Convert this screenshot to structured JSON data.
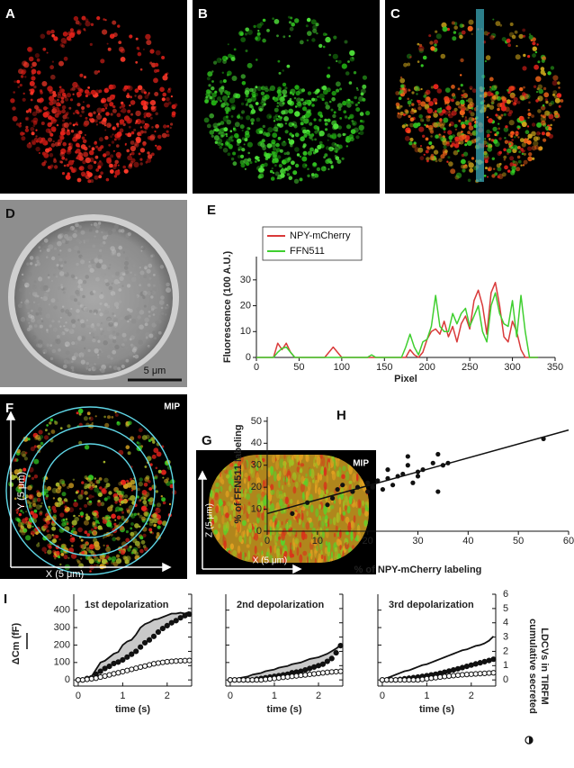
{
  "panel_labels": [
    "A",
    "B",
    "C",
    "D",
    "E",
    "F",
    "G",
    "H",
    "I"
  ],
  "image_text": {
    "d_scale_bar": "5 μm",
    "f_mip": "MIP",
    "f_y_axis": "Y (5 μm)",
    "f_x_axis": "X (5 μm)",
    "g_mip": "MIP",
    "g_z_axis": "Z (5 μm)",
    "g_x_axis": "X (5 μm)"
  },
  "chart_data": [
    {
      "type": "line",
      "xlabel": "Pixel",
      "ylabel": "Fluorescence (100 A.U.)",
      "x": [
        0,
        20,
        25,
        30,
        35,
        40,
        45,
        80,
        85,
        90,
        95,
        100,
        130,
        135,
        140,
        170,
        175,
        180,
        185,
        190,
        195,
        200,
        205,
        210,
        215,
        220,
        225,
        230,
        235,
        240,
        245,
        250,
        255,
        260,
        265,
        270,
        275,
        280,
        285,
        290,
        295,
        300,
        305,
        310,
        315,
        320,
        330
      ],
      "series": [
        {
          "name": "NPY-mCherry",
          "color": "#d93a3a",
          "values": [
            0,
            0,
            5.5,
            3,
            5.5,
            2,
            0,
            0,
            2,
            4,
            2,
            0,
            0,
            0,
            0,
            0,
            0,
            3,
            1,
            0,
            2,
            7,
            10,
            11,
            9,
            14,
            8,
            12,
            6,
            13,
            16,
            11,
            22,
            26,
            20,
            9,
            25,
            29,
            20,
            8,
            6,
            14,
            10,
            3,
            0,
            0,
            0
          ]
        },
        {
          "name": "FFN511",
          "color": "#3fcf2f",
          "values": [
            0,
            0,
            2,
            3.5,
            4,
            2,
            0,
            0,
            0,
            0,
            0,
            0,
            0,
            1,
            0,
            0,
            4,
            9,
            4,
            1,
            6,
            7,
            12,
            24,
            12,
            10,
            10,
            17,
            13,
            17,
            19,
            12,
            16,
            20,
            10,
            6,
            20,
            25,
            17,
            13,
            12,
            22,
            8,
            24,
            10,
            0,
            0
          ]
        }
      ],
      "xlim": [
        0,
        350
      ],
      "ylim": [
        0,
        39
      ],
      "xticks": [
        0,
        50,
        100,
        150,
        200,
        250,
        300,
        350
      ],
      "yticks": [
        0,
        10,
        20,
        30
      ],
      "legend": "upper left"
    },
    {
      "type": "scatter",
      "xlabel": "% of NPY-mCherry labeling",
      "ylabel": "% of FFN511 labeling",
      "color": "#111111",
      "x": [
        5,
        8,
        12,
        13,
        14,
        15,
        17,
        18,
        20,
        20,
        21,
        22,
        23,
        24,
        24,
        25,
        26,
        27,
        28,
        28,
        29,
        30,
        30,
        31,
        33,
        34,
        34,
        35,
        36,
        55
      ],
      "values": [
        8,
        13,
        12,
        15,
        19,
        21,
        18,
        20,
        22,
        18,
        20,
        23,
        19,
        24,
        28,
        21,
        25,
        26,
        30,
        34,
        22,
        27,
        25,
        28,
        31,
        18,
        35,
        30,
        31,
        42
      ],
      "fit": {
        "x": [
          0,
          60
        ],
        "y": [
          8,
          46
        ]
      },
      "xlim": [
        0,
        60
      ],
      "ylim": [
        0,
        52
      ],
      "xticks": [
        0,
        10,
        20,
        30,
        40,
        50,
        60
      ],
      "yticks": [
        0,
        10,
        20,
        30,
        40,
        50
      ]
    },
    {
      "type": "line",
      "title": "1st depolarization",
      "xlabel": "time (s)",
      "ylabel": "ΔCm (fF)",
      "x": [
        0,
        0.1,
        0.2,
        0.3,
        0.4,
        0.5,
        0.6,
        0.7,
        0.8,
        0.9,
        1,
        1.1,
        1.2,
        1.3,
        1.4,
        1.5,
        1.6,
        1.7,
        1.8,
        1.9,
        2,
        2.1,
        2.2,
        2.3,
        2.4,
        2.5
      ],
      "series": [
        {
          "color": "#111111",
          "marker": "none",
          "values": [
            0,
            5,
            10,
            20,
            60,
            100,
            110,
            130,
            150,
            160,
            200,
            220,
            230,
            260,
            300,
            320,
            330,
            345,
            350,
            360,
            370,
            380,
            380,
            385,
            380,
            390
          ]
        },
        {
          "color": "#111111",
          "marker": "filled",
          "axis": "y2",
          "values": [
            0,
            0,
            0.1,
            0.15,
            0.4,
            0.6,
            0.8,
            0.95,
            1.15,
            1.25,
            1.4,
            1.6,
            1.8,
            2.0,
            2.3,
            2.6,
            2.8,
            3.05,
            3.35,
            3.6,
            3.8,
            4.0,
            4.15,
            4.35,
            4.5,
            4.6
          ]
        },
        {
          "color": "#111111",
          "marker": "open",
          "axis": "y2",
          "values": [
            0,
            0,
            0.04,
            0.08,
            0.12,
            0.2,
            0.27,
            0.35,
            0.43,
            0.5,
            0.58,
            0.66,
            0.74,
            0.82,
            0.9,
            0.97,
            1.05,
            1.13,
            1.18,
            1.23,
            1.27,
            1.3,
            1.32,
            1.34,
            1.35,
            1.36
          ]
        }
      ],
      "fill_between": true,
      "xlim": [
        -0.1,
        2.55
      ],
      "ylim": [
        -35,
        491
      ],
      "y2lim": [
        -0.43,
        6
      ],
      "xticks": [
        0,
        1,
        2
      ],
      "yticks": [
        0,
        100,
        200,
        300,
        400
      ],
      "y2ticks": [
        0,
        1,
        2,
        3,
        4,
        5,
        6
      ],
      "ytick_labels": true,
      "y2tick_labels": false
    },
    {
      "type": "line",
      "title": "2nd depolarization",
      "xlabel": "time (s)",
      "x": [
        0,
        0.1,
        0.2,
        0.3,
        0.4,
        0.5,
        0.6,
        0.7,
        0.8,
        0.9,
        1,
        1.1,
        1.2,
        1.3,
        1.4,
        1.5,
        1.6,
        1.7,
        1.8,
        1.9,
        2,
        2.1,
        2.2,
        2.3,
        2.4,
        2.5
      ],
      "series": [
        {
          "color": "#111111",
          "marker": "none",
          "values": [
            0,
            5,
            10,
            15,
            20,
            30,
            35,
            40,
            50,
            55,
            60,
            70,
            75,
            80,
            90,
            95,
            100,
            110,
            120,
            125,
            130,
            140,
            150,
            165,
            180,
            200
          ]
        },
        {
          "color": "#111111",
          "marker": "filled",
          "axis": "y2",
          "values": [
            0,
            0,
            0,
            0,
            0,
            0,
            0.05,
            0.1,
            0.15,
            0.2,
            0.25,
            0.3,
            0.35,
            0.4,
            0.5,
            0.55,
            0.6,
            0.7,
            0.8,
            0.9,
            1.0,
            1.1,
            1.3,
            1.5,
            1.9,
            2.4
          ]
        },
        {
          "color": "#111111",
          "marker": "open",
          "axis": "y2",
          "values": [
            0,
            0,
            0,
            0,
            0,
            0,
            0,
            0,
            0.04,
            0.07,
            0.1,
            0.14,
            0.18,
            0.21,
            0.25,
            0.28,
            0.32,
            0.35,
            0.39,
            0.42,
            0.46,
            0.49,
            0.53,
            0.56,
            0.58,
            0.6
          ]
        }
      ],
      "fill_between": true,
      "xlim": [
        -0.1,
        2.55
      ],
      "ylim": [
        -35,
        491
      ],
      "y2lim": [
        -0.43,
        6
      ],
      "xticks": [
        0,
        1,
        2
      ],
      "yticks": [
        0,
        100,
        200,
        300,
        400
      ],
      "y2ticks": [
        0,
        1,
        2,
        3,
        4,
        5,
        6
      ],
      "ytick_labels": false,
      "y2tick_labels": false
    },
    {
      "type": "line",
      "title": "3rd depolarization",
      "xlabel": "time (s)",
      "y2label": [
        "cumulative secreted",
        "LDCVs in TIRFM"
      ],
      "x": [
        0,
        0.1,
        0.2,
        0.3,
        0.4,
        0.5,
        0.6,
        0.7,
        0.8,
        0.9,
        1,
        1.1,
        1.2,
        1.3,
        1.4,
        1.5,
        1.6,
        1.7,
        1.8,
        1.9,
        2,
        2.1,
        2.2,
        2.3,
        2.4,
        2.5
      ],
      "series": [
        {
          "color": "#111111",
          "marker": "none",
          "values": [
            0,
            10,
            20,
            30,
            40,
            50,
            55,
            65,
            75,
            85,
            90,
            100,
            110,
            120,
            130,
            140,
            150,
            160,
            170,
            175,
            185,
            195,
            200,
            210,
            225,
            250
          ]
        },
        {
          "color": "#111111",
          "marker": "filled",
          "axis": "y2",
          "values": [
            0,
            0,
            0,
            0,
            0.04,
            0.08,
            0.12,
            0.16,
            0.2,
            0.25,
            0.3,
            0.35,
            0.4,
            0.47,
            0.54,
            0.62,
            0.7,
            0.78,
            0.86,
            0.95,
            1.04,
            1.12,
            1.2,
            1.28,
            1.36,
            1.45
          ]
        },
        {
          "color": "#111111",
          "marker": "open",
          "axis": "y2",
          "values": [
            0,
            0,
            0,
            0,
            0,
            0,
            0,
            0,
            0,
            0.04,
            0.08,
            0.12,
            0.16,
            0.2,
            0.24,
            0.27,
            0.3,
            0.33,
            0.36,
            0.38,
            0.4,
            0.42,
            0.44,
            0.46,
            0.48,
            0.5
          ]
        }
      ],
      "fill_between": false,
      "xlim": [
        -0.1,
        2.55
      ],
      "ylim": [
        -35,
        491
      ],
      "y2lim": [
        -0.43,
        6
      ],
      "xticks": [
        0,
        1,
        2
      ],
      "yticks": [
        0,
        100,
        200,
        300,
        400
      ],
      "y2ticks": [
        0,
        1,
        2,
        3,
        4,
        5,
        6
      ],
      "ytick_labels": false,
      "y2tick_labels": true
    }
  ]
}
